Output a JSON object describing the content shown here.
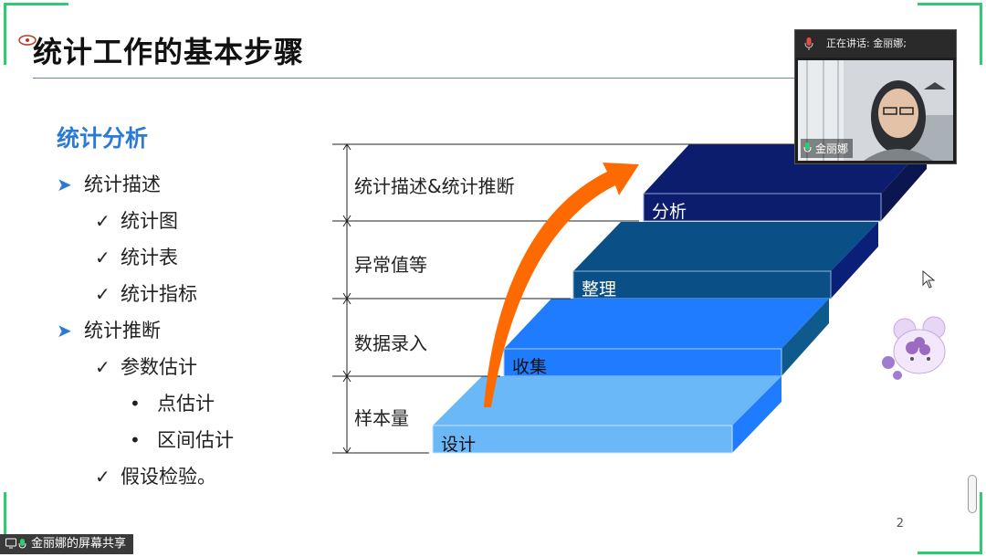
{
  "slide": {
    "title": "统计工作的基本步骤",
    "page_number": "2",
    "section_heading": "统计分析",
    "list": [
      {
        "level": 1,
        "marker": "➤",
        "text": "统计描述"
      },
      {
        "level": 2,
        "marker": "✓",
        "text": "统计图"
      },
      {
        "level": 2,
        "marker": "✓",
        "text": "统计表"
      },
      {
        "level": 2,
        "marker": "✓",
        "text": "统计指标"
      },
      {
        "level": 1,
        "marker": "➤",
        "text": "统计推断"
      },
      {
        "level": 2,
        "marker": "✓",
        "text": "参数估计"
      },
      {
        "level": 3,
        "marker": "•",
        "text": "点估计"
      },
      {
        "level": 3,
        "marker": "•",
        "text": "区间估计"
      },
      {
        "level": 2,
        "marker": "✓",
        "text": "假设检验。"
      }
    ],
    "diagram": {
      "step_labels": [
        "统计描述&统计推断",
        "异常值等",
        "数据录入",
        "样本量"
      ],
      "bar_labels": [
        "设计",
        "收集",
        "整理",
        "分析"
      ],
      "colors": {
        "design": "#6ab8f7",
        "collect": "#1f7cff",
        "organize": "#0a4f86",
        "analyze": "#0d1d6e",
        "arrow": "#ff6a00"
      }
    }
  },
  "meeting": {
    "speaking_text": "正在讲话: 金丽娜;",
    "participant_name": "金丽娜",
    "share_text": "金丽娜的屏幕共享"
  },
  "icons": {
    "mic": "mic-icon",
    "share": "screen-share-icon",
    "cursor": "cursor-icon",
    "sticker": "mouse-sticker-icon"
  }
}
